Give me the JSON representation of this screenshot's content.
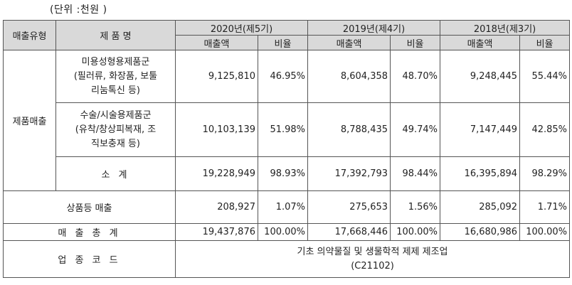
{
  "unit": "(단위 :천원 )",
  "headers": {
    "category": "매출유형",
    "product": "제 품 명",
    "years": [
      "2020년(제5기)",
      "2019년(제4기)",
      "2018년(제3기)"
    ],
    "sales": "매출액",
    "ratio": "비율"
  },
  "product_sales": "제품매출",
  "rows": [
    {
      "name": "미용성형용제품군\n(필러류, 화장품, 보툴리눔톡신 등)",
      "v": [
        "9,125,810",
        "46.95%",
        "8,604,358",
        "48.70%",
        "9,248,445",
        "55.44%"
      ]
    },
    {
      "name": "수술/시술용제품군\n(유착/창상피복재, 조직보충재 등)",
      "v": [
        "10,103,139",
        "51.98%",
        "8,788,435",
        "49.74%",
        "7,147,449",
        "42.85%"
      ]
    }
  ],
  "subtotal": {
    "label": "소 계",
    "v": [
      "19,228,949",
      "98.93%",
      "17,392,793",
      "98.44%",
      "16,395,894",
      "98.29%"
    ]
  },
  "goods": {
    "label": "상품등 매출",
    "v": [
      "208,927",
      "1.07%",
      "275,653",
      "1.56%",
      "285,092",
      "1.71%"
    ]
  },
  "total": {
    "label": "매 출 총 계",
    "v": [
      "19,437,876",
      "100.00%",
      "17,668,446",
      "100.00%",
      "16,680,986",
      "100.00%"
    ]
  },
  "industry_code": {
    "label": "업 종 코 드",
    "value": "기초 의약물질 및 생물학적 제제 제조업\n(C21102)"
  }
}
